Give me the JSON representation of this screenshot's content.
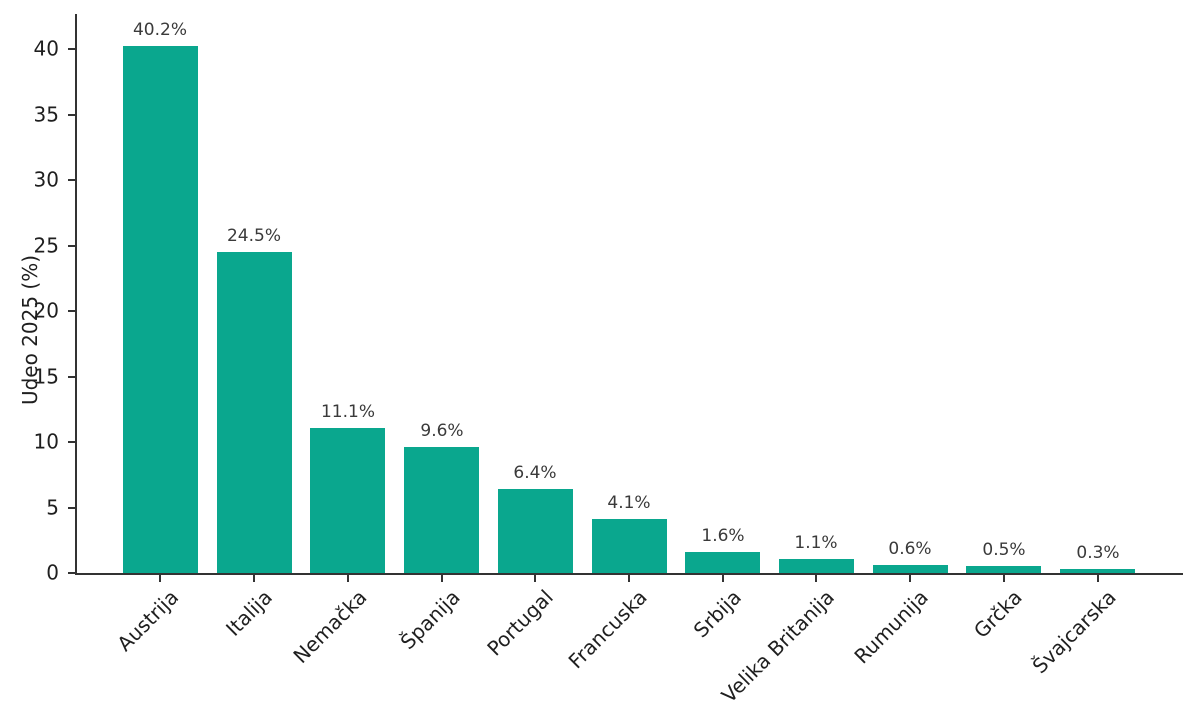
{
  "figure": {
    "background": "#ffffff"
  },
  "chart_data": {
    "type": "bar",
    "title": "",
    "xlabel": "",
    "ylabel": "Udeo 2025 (%)",
    "categories": [
      "Austrija",
      "Italija",
      "Nemačka",
      "Španija",
      "Portugal",
      "Francuska",
      "Srbija",
      "Velika Britanija",
      "Rumunija",
      "Grčka",
      "Švajcarska"
    ],
    "values": [
      40.2,
      24.5,
      11.1,
      9.6,
      6.4,
      4.1,
      1.6,
      1.1,
      0.6,
      0.5,
      0.3
    ],
    "value_labels": [
      "40.2%",
      "24.5%",
      "11.1%",
      "9.6%",
      "6.4%",
      "4.1%",
      "1.6%",
      "1.1%",
      "0.6%",
      "0.5%",
      "0.3%"
    ],
    "yticks": [
      0,
      5,
      10,
      15,
      20,
      25,
      30,
      35,
      40
    ],
    "ylim": [
      0,
      42.7
    ],
    "grid": false,
    "legend": null,
    "x_label_rotation_deg": 45,
    "bar_color": "#0aa78e",
    "axis_color": "#333333",
    "tick_label_color": "#1f1f1f",
    "value_label_color": "#3a3a3a"
  }
}
